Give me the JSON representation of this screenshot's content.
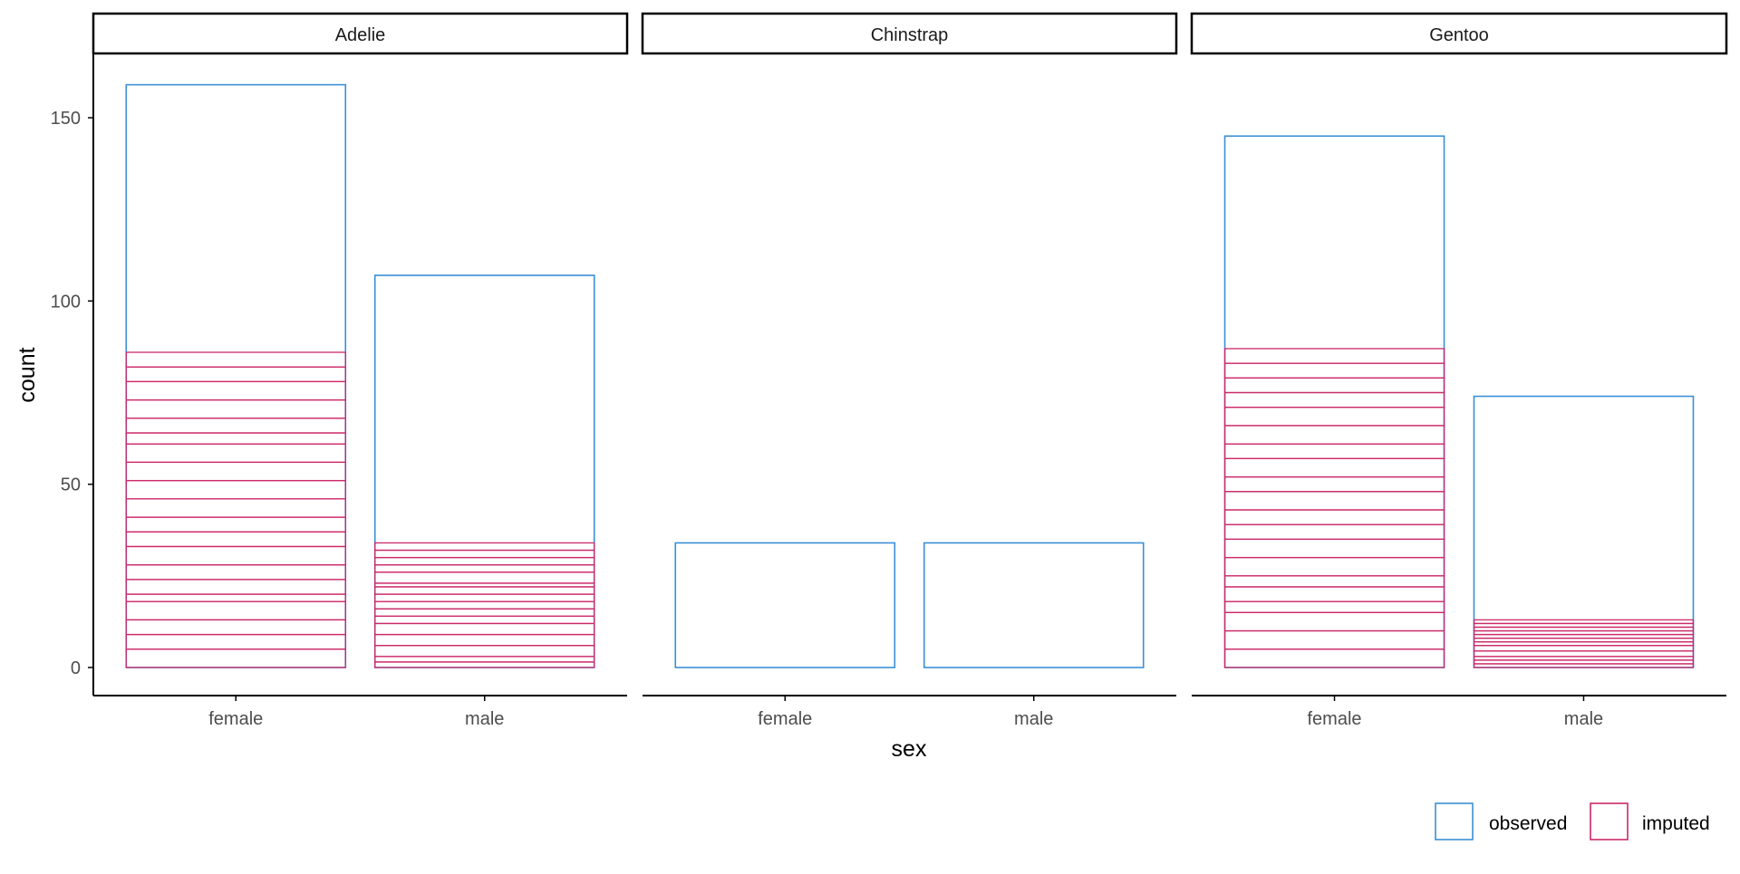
{
  "chart_data": {
    "type": "bar",
    "style": "faceted stacked outline bars",
    "facets": [
      "Adelie",
      "Chinstrap",
      "Gentoo"
    ],
    "categories": [
      "female",
      "male"
    ],
    "xlabel": "sex",
    "ylabel": "count",
    "ylim": [
      0,
      168
    ],
    "yticks": [
      0,
      50,
      100,
      150
    ],
    "grid": false,
    "legend": {
      "position": "bottom-right",
      "entries": [
        "observed",
        "imputed"
      ]
    },
    "colors": {
      "observed": "#3a8fd6",
      "imputed": "#cc2a6a",
      "axis": "#000000",
      "tick_text": "#4d4d4d"
    },
    "bars": [
      {
        "facet": "Adelie",
        "category": "female",
        "observed_total": 159,
        "imputed_total": 86,
        "imputed_stack_boundaries": [
          5,
          9,
          13,
          18,
          20,
          24,
          28,
          33,
          37,
          41,
          46,
          51,
          56,
          61,
          64,
          68,
          73,
          78,
          82,
          86
        ]
      },
      {
        "facet": "Adelie",
        "category": "male",
        "observed_total": 107,
        "imputed_total": 34,
        "imputed_stack_boundaries": [
          1.5,
          3,
          6,
          9,
          12,
          14,
          16,
          18,
          20,
          22,
          23,
          26,
          28,
          30,
          32,
          34
        ]
      },
      {
        "facet": "Chinstrap",
        "category": "female",
        "observed_total": 34,
        "imputed_total": 0,
        "imputed_stack_boundaries": []
      },
      {
        "facet": "Chinstrap",
        "category": "male",
        "observed_total": 34,
        "imputed_total": 0,
        "imputed_stack_boundaries": []
      },
      {
        "facet": "Gentoo",
        "category": "female",
        "observed_total": 145,
        "imputed_total": 87,
        "imputed_stack_boundaries": [
          5,
          10,
          15,
          18,
          22,
          25,
          30,
          35,
          39,
          43,
          48,
          52,
          57,
          61,
          66,
          71,
          75,
          79,
          83,
          87
        ]
      },
      {
        "facet": "Gentoo",
        "category": "male",
        "observed_total": 74,
        "imputed_total": 13,
        "imputed_stack_boundaries": [
          1,
          2,
          3,
          4.5,
          6,
          7,
          8,
          9,
          10,
          11,
          12,
          13
        ]
      }
    ]
  }
}
